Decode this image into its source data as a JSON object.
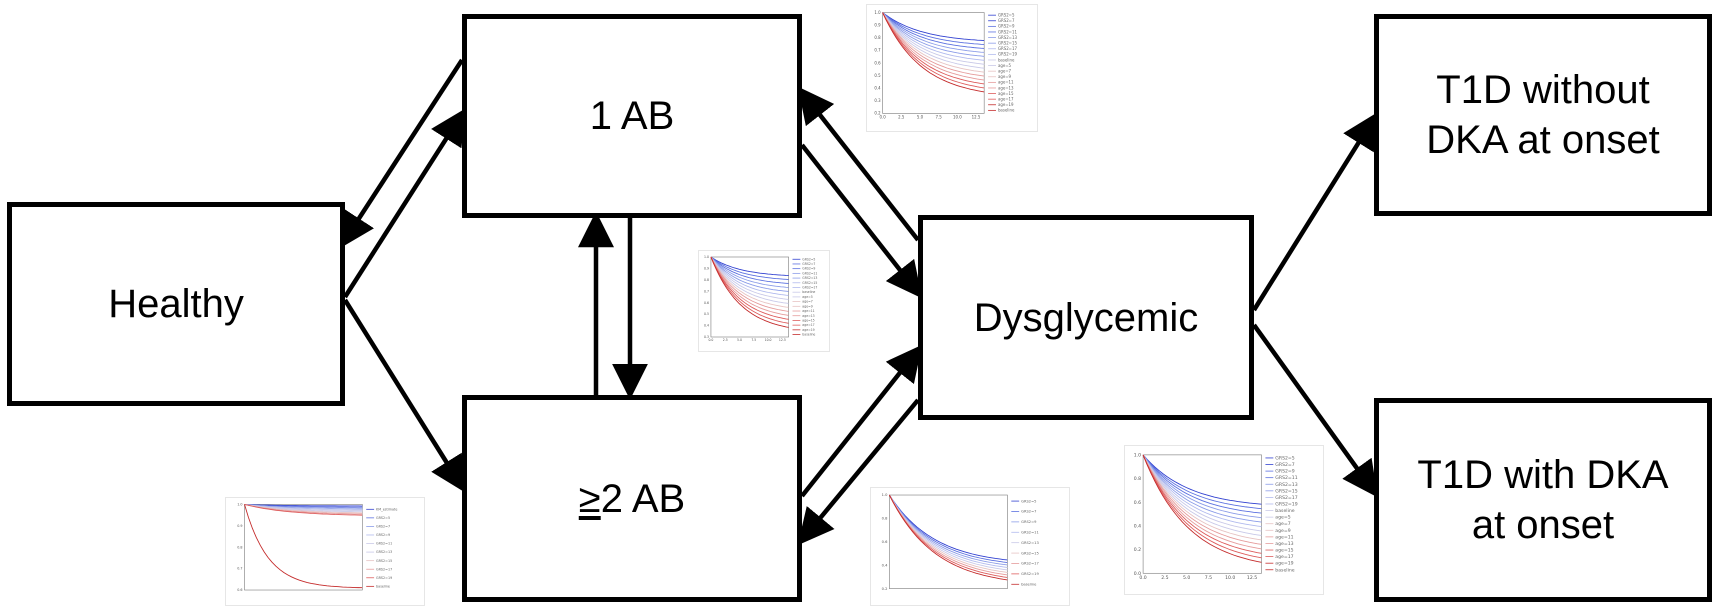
{
  "nodes": {
    "healthy": "Healthy",
    "one_ab": "1 AB",
    "two_ab_symbol": "≥",
    "two_ab_rest": "2 AB",
    "dysglycemic": "Dysglycemic",
    "t1d_without_dka": "T1D without\nDKA at onset",
    "t1d_with_dka": "T1D with DKA\nat onset"
  },
  "thumbnail_plots": [
    {
      "id": "plot-1ab-to-dysglycemic",
      "legend": [
        "GRS2=5",
        "GRS2=7",
        "GRS2=9",
        "GRS2=11",
        "GRS2=13",
        "GRS2=15",
        "GRS2=17",
        "GRS2=19",
        "baseline",
        "age=5",
        "age=7",
        "age=9",
        "age=11",
        "age=13",
        "age=15",
        "age=17",
        "age=19",
        "baseline"
      ],
      "yticks": [
        "1.0",
        "0.9",
        "0.8",
        "0.7",
        "0.6",
        "0.5",
        "0.4",
        "0.3",
        "0.2"
      ],
      "xticks": [
        "0.0",
        "2.5",
        "5.0",
        "7.5",
        "10.0",
        "12.5"
      ],
      "colors": {
        "blue": "#3b5bdb",
        "red": "#d63333",
        "light": "#c9a9a9"
      }
    },
    {
      "id": "plot-1ab-2ab",
      "legend": [
        "GRS2=5",
        "GRS2=7",
        "GRS2=9",
        "GRS2=11",
        "GRS2=13",
        "GRS2=15",
        "GRS2=17",
        "baseline",
        "age=5",
        "age=7",
        "age=9",
        "age=11",
        "age=13",
        "age=15",
        "age=17",
        "age=19",
        "baseline"
      ],
      "yticks": [
        "1.0",
        "0.9",
        "0.8",
        "0.7",
        "0.6",
        "0.5",
        "0.4",
        "0.3"
      ],
      "xticks": [
        "0.0",
        "2.5",
        "5.0",
        "7.5",
        "10.0",
        "12.5"
      ]
    },
    {
      "id": "plot-healthy-2ab",
      "legend": [
        "KM_estimate",
        "GRS2=5",
        "GRS2=7",
        "GRS2=9",
        "GRS2=11",
        "GRS2=13",
        "GRS2=15",
        "GRS2=17",
        "GRS2=19",
        "baseline"
      ],
      "yticks": [
        "1.0",
        "0.9",
        "0.8",
        "0.7",
        "0.6"
      ],
      "xticks": []
    },
    {
      "id": "plot-2ab-dysglycemic",
      "legend": [
        "GRS2=5",
        "GRS2=7",
        "GRS2=9",
        "GRS2=11",
        "GRS2=13",
        "GRS2=15",
        "GRS2=17",
        "GRS2=19",
        "baseline"
      ],
      "yticks": [
        "1.0",
        "0.8",
        "0.6",
        "0.4",
        "0.2"
      ],
      "xticks": []
    },
    {
      "id": "plot-dysglycemic-t1d",
      "legend": [
        "GRS2=5",
        "GRS2=7",
        "GRS2=9",
        "GRS2=11",
        "GRS2=13",
        "GRS2=15",
        "GRS2=17",
        "GRS2=19",
        "baseline",
        "age=5",
        "age=7",
        "age=9",
        "age=11",
        "age=13",
        "age=15",
        "age=17",
        "age=19",
        "baseline"
      ],
      "yticks": [
        "1.0",
        "0.8",
        "0.6",
        "0.4",
        "0.2",
        "0.0"
      ],
      "xticks": [
        "0.0",
        "2.5",
        "5.0",
        "7.5",
        "10.0",
        "12.5"
      ]
    }
  ]
}
